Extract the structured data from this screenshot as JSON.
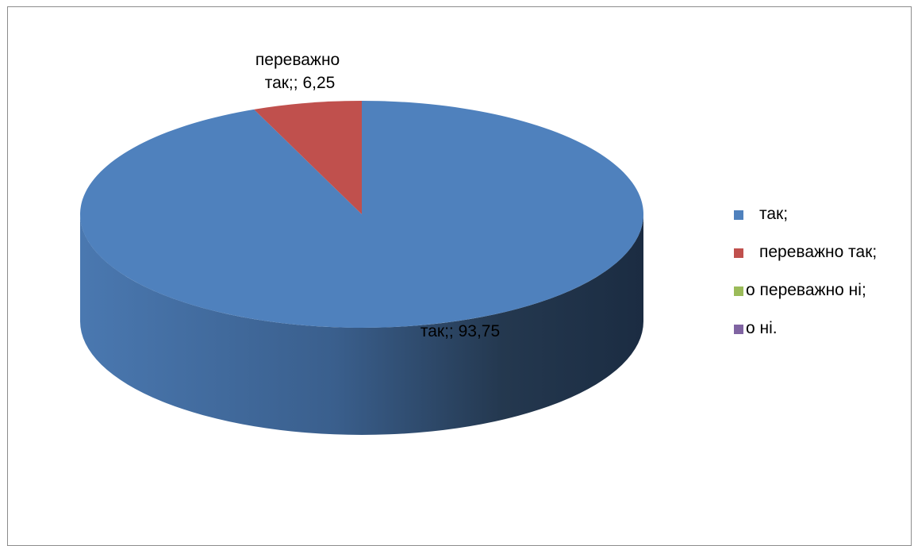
{
  "chart_data": {
    "type": "pie",
    "categories": [
      "так;",
      "переважно так;",
      "о переважно ні;",
      "о ні."
    ],
    "values": [
      93.75,
      6.25,
      0,
      0
    ],
    "colors": [
      "#4f81bd",
      "#c0504d",
      "#9bbb59",
      "#8064a2"
    ],
    "data_labels": [
      {
        "lines": [
          "так;; 93,75"
        ]
      },
      {
        "lines": [
          "переважно",
          "так;; 6,25"
        ]
      }
    ],
    "legend": {
      "position": "right",
      "entries": [
        "так;",
        "переважно так;",
        "о переважно ні;",
        "о ні."
      ]
    },
    "style": "3d"
  }
}
